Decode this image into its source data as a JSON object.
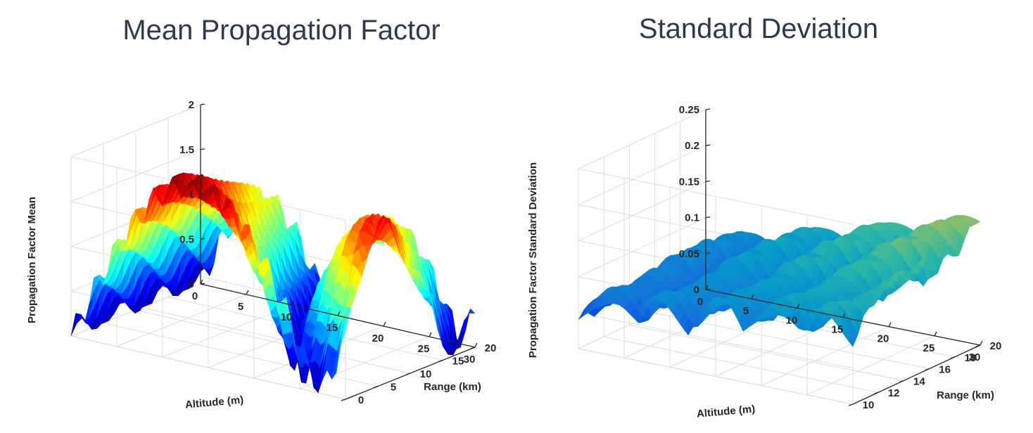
{
  "chart_data": [
    {
      "type": "surface",
      "title": "Mean Propagation Factor",
      "xlabel": "Altitude (m)",
      "ylabel": "Range (km)",
      "zlabel": "Propagation Factor Mean",
      "xlim": [
        0,
        30
      ],
      "ylim": [
        0,
        20
      ],
      "zlim": [
        0,
        2
      ],
      "x_ticks": [
        "0",
        "5",
        "10",
        "15",
        "20",
        "25",
        "30"
      ],
      "y_ticks": [
        "0",
        "5",
        "10",
        "15",
        "20"
      ],
      "z_ticks": [
        "0",
        "0.5",
        "1",
        "1.5",
        "2"
      ],
      "colormap": "jet",
      "grid": true
    },
    {
      "type": "surface",
      "title": "Standard Deviation",
      "xlabel": "Altitude (m)",
      "ylabel": "Range (km)",
      "zlabel": "Propagation Factor Standard Deviation",
      "xlim": [
        0,
        30
      ],
      "ylim": [
        10,
        20
      ],
      "zlim": [
        0,
        0.25
      ],
      "x_ticks": [
        "0",
        "5",
        "10",
        "15",
        "20",
        "25",
        "30"
      ],
      "y_ticks": [
        "10",
        "12",
        "14",
        "16",
        "18",
        "20"
      ],
      "z_ticks": [
        "0",
        "0.05",
        "0.1",
        "0.15",
        "0.2",
        "0.25"
      ],
      "colormap": "parula",
      "grid": true
    }
  ]
}
